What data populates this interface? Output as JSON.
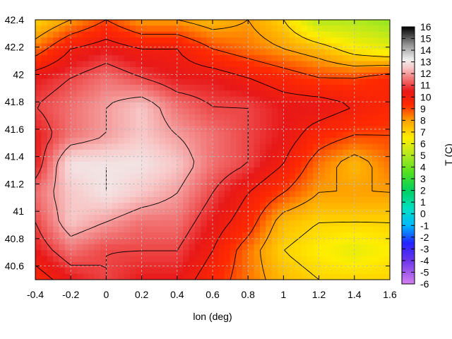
{
  "chart_data": {
    "type": "heatmap",
    "title": "",
    "xlabel": "lon (deg)",
    "ylabel": "",
    "colorbar_label": "T (C)",
    "xlim": [
      -0.4,
      1.6
    ],
    "ylim": [
      40.5,
      42.4
    ],
    "x_ticks": [
      -0.4,
      -0.2,
      0,
      0.2,
      0.4,
      0.6,
      0.8,
      1,
      1.2,
      1.4,
      1.6
    ],
    "y_ticks": [
      40.6,
      40.8,
      41,
      41.2,
      41.4,
      41.6,
      41.8,
      42,
      42.2,
      42.4
    ],
    "colorbar_ticks": [
      -6,
      -5,
      -4,
      -3,
      -2,
      -1,
      0,
      1,
      2,
      3,
      4,
      5,
      6,
      7,
      8,
      9,
      10,
      11,
      12,
      13,
      14,
      15,
      16
    ],
    "crange": [
      -6,
      16
    ],
    "grid": true,
    "contours": true,
    "colormap": [
      {
        "t": -6,
        "color": "#d580f0"
      },
      {
        "t": -4,
        "color": "#6a35e8"
      },
      {
        "t": -2.5,
        "color": "#2323ff"
      },
      {
        "t": -1,
        "color": "#00b8ff"
      },
      {
        "t": 0.5,
        "color": "#00e0c0"
      },
      {
        "t": 2,
        "color": "#00d060"
      },
      {
        "t": 3.5,
        "color": "#50e020"
      },
      {
        "t": 5,
        "color": "#b0e820"
      },
      {
        "t": 6.5,
        "color": "#ffee00"
      },
      {
        "t": 8,
        "color": "#ffa000"
      },
      {
        "t": 9.3,
        "color": "#ff2a00"
      },
      {
        "t": 10.5,
        "color": "#e81818"
      },
      {
        "t": 11.3,
        "color": "#f06060"
      },
      {
        "t": 12.5,
        "color": "#f8c8c8"
      },
      {
        "t": 13.2,
        "color": "#f0f0f0"
      },
      {
        "t": 14.5,
        "color": "#909090"
      },
      {
        "t": 16,
        "color": "#000000"
      }
    ],
    "field": {
      "rows": 10,
      "cols": 11,
      "lon_start": -0.4,
      "lon_step": 0.2,
      "lat_start": 40.5,
      "lat_step": 0.211,
      "values": [
        [
          9.5,
          10.5,
          11,
          10.5,
          10.5,
          9.5,
          8.5,
          7.5,
          7,
          7,
          7
        ],
        [
          10.5,
          11.5,
          11,
          11,
          11,
          10,
          8.5,
          7,
          6.5,
          6,
          6.5
        ],
        [
          11,
          12.5,
          12,
          11.5,
          11.5,
          10.5,
          9.5,
          7.5,
          7,
          7,
          7
        ],
        [
          11.5,
          12.5,
          13,
          12.5,
          12,
          11,
          10,
          9,
          8,
          8,
          8
        ],
        [
          10.5,
          13,
          13,
          13,
          12.5,
          11.5,
          11,
          10,
          8.5,
          7.5,
          8.5
        ],
        [
          10.5,
          11.5,
          12,
          12.5,
          12,
          11.5,
          11,
          10.5,
          9.5,
          9,
          9
        ],
        [
          11,
          11.5,
          12,
          12.5,
          11.5,
          11,
          11,
          10.5,
          10.5,
          10,
          9.5
        ],
        [
          10.5,
          11,
          11.5,
          11,
          10.5,
          10.5,
          10,
          9.5,
          9,
          9,
          9.5
        ],
        [
          8.5,
          10,
          10.5,
          10,
          10,
          9,
          8.5,
          8,
          7.5,
          6.5,
          6
        ],
        [
          7,
          8,
          9,
          8,
          8,
          7.5,
          8,
          7,
          5,
          5,
          4.5
        ]
      ]
    }
  }
}
